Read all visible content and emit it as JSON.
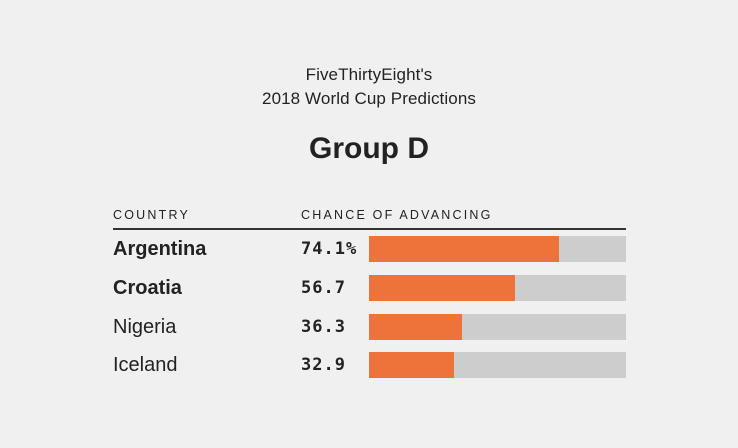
{
  "header": {
    "line1": "FiveThirtyEight's",
    "line2": "2018 World Cup Predictions",
    "group_title": "Group D"
  },
  "columns": {
    "country": "COUNTRY",
    "chance": "CHANCE OF ADVANCING"
  },
  "colors": {
    "bar_fill": "#ee733a",
    "bar_track": "#cdcdcd",
    "background": "#f0f0f0"
  },
  "chart_data": {
    "type": "bar",
    "orientation": "horizontal",
    "title": "Group D",
    "categories": [
      "Argentina",
      "Croatia",
      "Nigeria",
      "Iceland"
    ],
    "values": [
      74.1,
      56.7,
      36.3,
      32.9
    ],
    "value_labels": [
      "74.1%",
      "56.7",
      "36.3",
      "32.9"
    ],
    "bold_categories": [
      "Argentina",
      "Croatia"
    ],
    "xlim": [
      0,
      100
    ],
    "grid": false
  }
}
